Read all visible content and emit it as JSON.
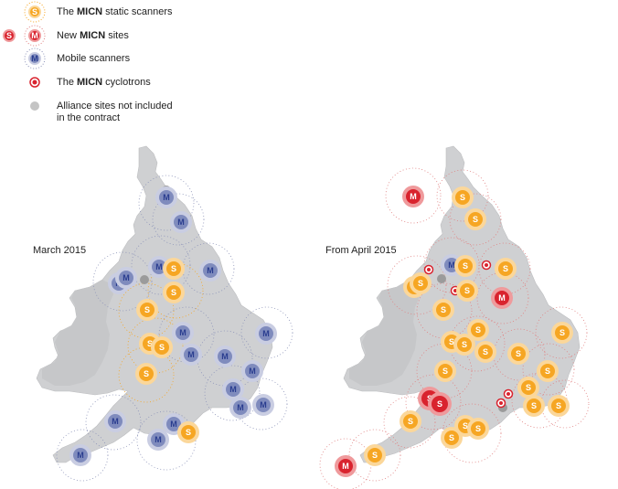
{
  "legend": {
    "static": {
      "prefix": "The ",
      "bold": "MICN",
      "suffix": " static scanners",
      "glyph": "S"
    },
    "newsites": {
      "prefix": "New ",
      "bold": "MICN",
      "suffix": " sites",
      "glyph_s": "S",
      "glyph_m": "M"
    },
    "mobile": {
      "text": "Mobile scanners",
      "glyph": "M"
    },
    "cyclotrons": {
      "prefix": "The ",
      "bold": "MICN",
      "suffix": " cyclotrons"
    },
    "alliance": {
      "line1": "Alliance sites not included",
      "line2": "in the contract"
    }
  },
  "maps": {
    "left": {
      "title": "March 2015"
    },
    "right": {
      "title": "From April 2015"
    }
  },
  "colors": {
    "land": "#cfd0d2",
    "static_fill": "#f6a623",
    "static_halo": "#fbd79a",
    "mobile_fill": "#7f8bbd",
    "mobile_halo": "#c9cde2",
    "new_fill": "#d9232e",
    "new_halo": "#ef9a9c",
    "alliance": "#9b9b9b",
    "ring_blue": "#8c93b8",
    "ring_red": "#e08080"
  }
}
